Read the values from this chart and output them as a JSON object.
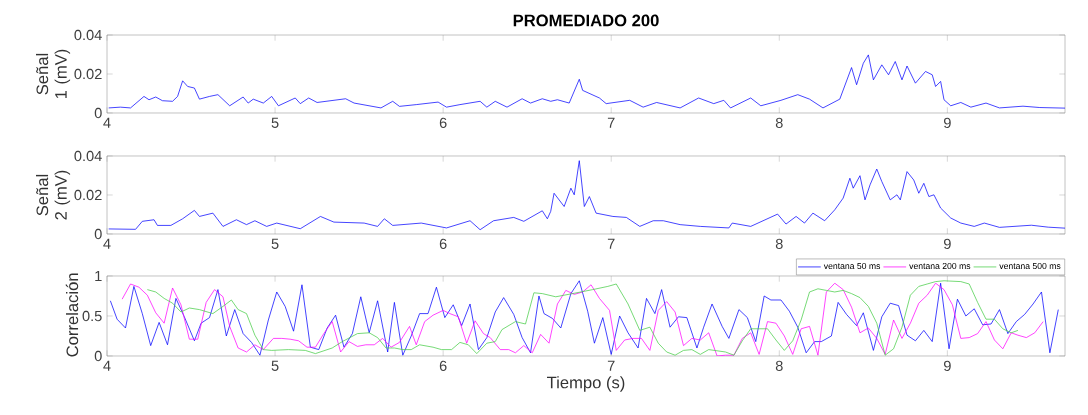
{
  "chart_data": [
    {
      "type": "line",
      "title": "PROMEDIADO 200",
      "ylabel": "Señal 1 (mV)",
      "xlim": [
        4,
        9.7
      ],
      "xticks": [
        4,
        5,
        6,
        7,
        8,
        9
      ],
      "ylim": [
        0,
        0.04
      ],
      "yticks": [
        0,
        0.02,
        0.04
      ],
      "series": [
        {
          "color": "#0000ff",
          "x": [
            4.01,
            4.08,
            4.14,
            4.22,
            4.25,
            4.29,
            4.33,
            4.39,
            4.42,
            4.45,
            4.48,
            4.52,
            4.55,
            4.61,
            4.66,
            4.73,
            4.81,
            4.84,
            4.87,
            4.93,
            4.98,
            5.02,
            5.12,
            5.15,
            5.2,
            5.25,
            5.42,
            5.47,
            5.63,
            5.7,
            5.74,
            5.84,
            5.97,
            6.02,
            6.1,
            6.22,
            6.26,
            6.31,
            6.38,
            6.47,
            6.52,
            6.59,
            6.64,
            6.68,
            6.75,
            6.81,
            6.83,
            6.93,
            6.97,
            7.11,
            7.19,
            7.27,
            7.41,
            7.52,
            7.61,
            7.67,
            7.71,
            7.83,
            7.89,
            8.01,
            8.11,
            8.18,
            8.26,
            8.36,
            8.43,
            8.46,
            8.5,
            8.53,
            8.56,
            8.61,
            8.65,
            8.69,
            8.73,
            8.76,
            8.81,
            8.87,
            8.91,
            8.93,
            8.96,
            8.98,
            9.02,
            9.08,
            9.14,
            9.23,
            9.31,
            9.45,
            9.55,
            9.7
          ],
          "values": [
            0.0026,
            0.003,
            0.0026,
            0.0085,
            0.0068,
            0.0082,
            0.0063,
            0.006,
            0.0085,
            0.0165,
            0.0136,
            0.0128,
            0.0071,
            0.0085,
            0.0094,
            0.0037,
            0.0082,
            0.0051,
            0.0071,
            0.0051,
            0.0085,
            0.0037,
            0.0077,
            0.0048,
            0.0077,
            0.0054,
            0.0073,
            0.0051,
            0.0026,
            0.006,
            0.0034,
            0.0043,
            0.0056,
            0.003,
            0.0043,
            0.006,
            0.003,
            0.006,
            0.003,
            0.0073,
            0.0051,
            0.0073,
            0.006,
            0.0068,
            0.0051,
            0.0173,
            0.0116,
            0.0077,
            0.0048,
            0.0065,
            0.003,
            0.0054,
            0.0026,
            0.0077,
            0.0048,
            0.0065,
            0.0026,
            0.0077,
            0.0037,
            0.0065,
            0.0094,
            0.0071,
            0.0026,
            0.0071,
            0.0233,
            0.0145,
            0.0255,
            0.0298,
            0.017,
            0.0247,
            0.0196,
            0.0264,
            0.017,
            0.0241,
            0.0153,
            0.0213,
            0.0196,
            0.0136,
            0.0162,
            0.0068,
            0.0037,
            0.0054,
            0.003,
            0.0051,
            0.0026,
            0.0035,
            0.0028,
            0.0025
          ]
        }
      ]
    },
    {
      "type": "line",
      "ylabel": "Señal 2 (mV)",
      "xlim": [
        4,
        9.7
      ],
      "xticks": [
        4,
        5,
        6,
        7,
        8,
        9
      ],
      "ylim": [
        0,
        0.04
      ],
      "yticks": [
        0,
        0.02,
        0.04
      ],
      "series": [
        {
          "color": "#0000ff",
          "x": [
            4.01,
            4.17,
            4.21,
            4.28,
            4.3,
            4.38,
            4.45,
            4.52,
            4.55,
            4.63,
            4.69,
            4.77,
            4.83,
            4.88,
            4.95,
            5.01,
            5.15,
            5.27,
            5.35,
            5.53,
            5.61,
            5.65,
            5.7,
            5.87,
            6.02,
            6.16,
            6.22,
            6.3,
            6.42,
            6.48,
            6.59,
            6.62,
            6.64,
            6.66,
            6.69,
            6.72,
            6.76,
            6.78,
            6.81,
            6.84,
            6.87,
            6.91,
            7.01,
            7.09,
            7.17,
            7.25,
            7.31,
            7.41,
            7.53,
            7.7,
            7.72,
            7.83,
            7.99,
            8.04,
            8.1,
            8.15,
            8.2,
            8.27,
            8.33,
            8.38,
            8.42,
            8.44,
            8.48,
            8.51,
            8.54,
            8.58,
            8.61,
            8.66,
            8.7,
            8.72,
            8.76,
            8.8,
            8.83,
            8.86,
            8.89,
            8.92,
            8.96,
            9.02,
            9.08,
            9.16,
            9.22,
            9.31,
            9.5,
            9.6,
            9.7
          ],
          "values": [
            0.0026,
            0.0024,
            0.0065,
            0.0073,
            0.0044,
            0.0044,
            0.0078,
            0.0121,
            0.009,
            0.0107,
            0.0039,
            0.0073,
            0.0048,
            0.0068,
            0.0039,
            0.0056,
            0.0027,
            0.009,
            0.0061,
            0.0056,
            0.0039,
            0.0078,
            0.0044,
            0.0056,
            0.0031,
            0.0068,
            0.0022,
            0.0068,
            0.0085,
            0.0065,
            0.0119,
            0.0078,
            0.0116,
            0.0209,
            0.0175,
            0.0141,
            0.0235,
            0.0201,
            0.0376,
            0.0141,
            0.0192,
            0.0107,
            0.009,
            0.0085,
            0.0039,
            0.0068,
            0.0068,
            0.0048,
            0.0039,
            0.0031,
            0.0056,
            0.0039,
            0.0102,
            0.0051,
            0.009,
            0.0056,
            0.0107,
            0.0068,
            0.0124,
            0.0184,
            0.0286,
            0.0235,
            0.0299,
            0.0175,
            0.0252,
            0.0333,
            0.0269,
            0.0175,
            0.0201,
            0.0175,
            0.032,
            0.0277,
            0.0209,
            0.026,
            0.0192,
            0.0201,
            0.0133,
            0.0082,
            0.0056,
            0.0039,
            0.0056,
            0.0034,
            0.0045,
            0.0035,
            0.003
          ]
        }
      ]
    },
    {
      "type": "line",
      "ylabel": "Correlación",
      "xlabel": "Tiempo (s)",
      "xlim": [
        4,
        9.7
      ],
      "xticks": [
        4,
        5,
        6,
        7,
        8,
        9
      ],
      "ylim": [
        0,
        1
      ],
      "yticks": [
        0,
        0.5,
        1
      ],
      "legend": "top right",
      "series": [
        {
          "name": "ventana 50 ms",
          "color": "#0000ff",
          "x": [
            4.02,
            4.06,
            4.11,
            4.16,
            4.21,
            4.26,
            4.31,
            4.36,
            4.41,
            4.46,
            4.52,
            4.56,
            4.61,
            4.66,
            4.71,
            4.76,
            4.81,
            4.86,
            4.91,
            4.96,
            5.01,
            5.06,
            5.11,
            5.16,
            5.21,
            5.26,
            5.31,
            5.36,
            5.41,
            5.46,
            5.51,
            5.56,
            5.61,
            5.67,
            5.71,
            5.76,
            5.81,
            5.86,
            5.91,
            5.96,
            6.01,
            6.06,
            6.11,
            6.16,
            6.21,
            6.26,
            6.31,
            6.36,
            6.42,
            6.47,
            6.52,
            6.57,
            6.6,
            6.65,
            6.7,
            6.76,
            6.81,
            6.86,
            6.9,
            6.95,
            7.0,
            7.05,
            7.1,
            7.16,
            7.21,
            7.26,
            7.3,
            7.35,
            7.4,
            7.45,
            7.51,
            7.55,
            7.6,
            7.66,
            7.7,
            7.76,
            7.81,
            7.86,
            7.91,
            7.95,
            8.01,
            8.06,
            8.11,
            8.16,
            8.21,
            8.25,
            8.31,
            8.35,
            8.4,
            8.46,
            8.5,
            8.56,
            8.61,
            8.66,
            8.71,
            8.76,
            8.81,
            8.86,
            8.91,
            8.96,
            9.01,
            9.06,
            9.11,
            9.16,
            9.21,
            9.26,
            9.31,
            9.36,
            9.41,
            9.46,
            9.51,
            9.56,
            9.61,
            9.66
          ],
          "values": [
            0.69,
            0.46,
            0.35,
            0.87,
            0.53,
            0.13,
            0.42,
            0.14,
            0.72,
            0.49,
            0.19,
            0.41,
            0.48,
            0.83,
            0.25,
            0.58,
            0.28,
            0.17,
            0.01,
            0.45,
            0.8,
            0.62,
            0.31,
            0.89,
            0.11,
            0.08,
            0.35,
            0.51,
            0.11,
            0.28,
            0.74,
            0.29,
            0.69,
            0.05,
            0.67,
            0.01,
            0.25,
            0.53,
            0.53,
            0.86,
            0.48,
            0.64,
            0.38,
            0.65,
            0.08,
            0.23,
            0.55,
            0.73,
            0.52,
            0.23,
            0.04,
            0.75,
            0.53,
            0.47,
            0.35,
            0.78,
            0.94,
            0.56,
            0.16,
            0.48,
            0.02,
            0.5,
            0.29,
            0.1,
            0.72,
            0.53,
            0.83,
            0.36,
            0.49,
            0.48,
            0.1,
            0.36,
            0.65,
            0.37,
            0.22,
            0.58,
            0.48,
            0.18,
            0.75,
            0.7,
            0.7,
            0.56,
            0.36,
            0.04,
            0.18,
            0.18,
            0.25,
            0.67,
            0.52,
            0.38,
            0.54,
            0.07,
            0.49,
            0.66,
            0.63,
            0.26,
            0.19,
            0.32,
            0.18,
            0.91,
            0.09,
            0.71,
            0.5,
            0.59,
            0.39,
            0.4,
            0.58,
            0.28,
            0.43,
            0.52,
            0.65,
            0.8,
            0.04,
            0.58
          ]
        },
        {
          "name": "ventana 200 ms",
          "color": "#ff00ff",
          "x": [
            4.09,
            4.14,
            4.19,
            4.24,
            4.29,
            4.34,
            4.39,
            4.44,
            4.49,
            4.54,
            4.59,
            4.64,
            4.69,
            4.73,
            4.78,
            4.83,
            4.88,
            4.93,
            4.99,
            5.04,
            5.09,
            5.14,
            5.19,
            5.24,
            5.29,
            5.34,
            5.39,
            5.44,
            5.49,
            5.54,
            5.59,
            5.64,
            5.69,
            5.74,
            5.8,
            5.84,
            5.89,
            5.94,
            6.0,
            6.04,
            6.09,
            6.14,
            6.19,
            6.24,
            6.28,
            6.34,
            6.39,
            6.43,
            6.48,
            6.53,
            6.58,
            6.63,
            6.68,
            6.73,
            6.78,
            6.83,
            6.88,
            6.93,
            6.99,
            7.03,
            7.08,
            7.13,
            7.18,
            7.23,
            7.28,
            7.33,
            7.38,
            7.43,
            7.48,
            7.53,
            7.58,
            7.63,
            7.68,
            7.73,
            7.78,
            7.83,
            7.88,
            7.93,
            7.98,
            8.03,
            8.08,
            8.13,
            8.18,
            8.23,
            8.28,
            8.33,
            8.38,
            8.43,
            8.48,
            8.53,
            8.58,
            8.63,
            8.68,
            8.73,
            8.78,
            8.83,
            8.88,
            8.93,
            8.98,
            9.03,
            9.08,
            9.13,
            9.18,
            9.23,
            9.28,
            9.33,
            9.38,
            9.42,
            9.47,
            9.52,
            9.57
          ],
          "values": [
            0.71,
            0.9,
            0.86,
            0.76,
            0.54,
            0.41,
            0.85,
            0.64,
            0.21,
            0.21,
            0.67,
            0.83,
            0.74,
            0.37,
            0.1,
            0.05,
            0.14,
            0.08,
            0.22,
            0.22,
            0.21,
            0.19,
            0.11,
            0.11,
            0.28,
            0.43,
            0.05,
            0.18,
            0.12,
            0.14,
            0.14,
            0.22,
            0.11,
            0.17,
            0.37,
            0.14,
            0.43,
            0.51,
            0.57,
            0.53,
            0.49,
            0.16,
            0.44,
            0.28,
            0.23,
            0.08,
            0.08,
            0.04,
            0.13,
            0.04,
            0.27,
            0.16,
            0.65,
            0.82,
            0.77,
            0.8,
            0.89,
            0.72,
            0.57,
            0.07,
            0.2,
            0.22,
            0.22,
            0.07,
            0.57,
            0.68,
            0.55,
            0.13,
            0.22,
            0.2,
            0.29,
            0.0,
            0.01,
            0.01,
            0.22,
            0.29,
            0.02,
            0.43,
            0.41,
            0.25,
            0.02,
            0.34,
            0.37,
            0.01,
            0.8,
            0.91,
            0.83,
            0.61,
            0.29,
            0.35,
            0.22,
            0.02,
            0.45,
            0.22,
            0.41,
            0.66,
            0.76,
            0.91,
            0.83,
            0.64,
            0.22,
            0.23,
            0.28,
            0.43,
            0.2,
            0.09,
            0.29,
            0.26,
            0.23,
            0.29,
            0.43
          ]
        },
        {
          "name": "ventana 500 ms",
          "color": "#44cc44",
          "x": [
            4.24,
            4.29,
            4.34,
            4.39,
            4.44,
            4.49,
            4.55,
            4.63,
            4.69,
            4.74,
            4.78,
            4.83,
            4.88,
            4.93,
            4.98,
            5.08,
            5.18,
            5.24,
            5.34,
            5.4,
            5.49,
            5.56,
            5.61,
            5.66,
            5.71,
            5.76,
            5.81,
            5.86,
            5.94,
            5.99,
            6.05,
            6.1,
            6.15,
            6.2,
            6.26,
            6.31,
            6.35,
            6.43,
            6.49,
            6.54,
            6.59,
            6.67,
            6.77,
            6.89,
            6.98,
            7.03,
            7.1,
            7.17,
            7.23,
            7.28,
            7.33,
            7.38,
            7.43,
            7.48,
            7.53,
            7.58,
            7.68,
            7.73,
            7.78,
            7.83,
            7.93,
            7.98,
            8.03,
            8.08,
            8.13,
            8.18,
            8.23,
            8.28,
            8.33,
            8.38,
            8.43,
            8.48,
            8.53,
            8.58,
            8.63,
            8.68,
            8.73,
            8.78,
            8.83,
            8.88,
            8.93,
            8.98,
            9.08,
            9.13,
            9.18,
            9.23,
            9.28,
            9.33,
            9.38,
            9.42
          ],
          "values": [
            0.83,
            0.8,
            0.72,
            0.66,
            0.55,
            0.6,
            0.58,
            0.53,
            0.62,
            0.7,
            0.58,
            0.53,
            0.26,
            0.08,
            0.07,
            0.08,
            0.07,
            0.03,
            0.1,
            0.18,
            0.28,
            0.29,
            0.23,
            0.1,
            0.1,
            0.08,
            0.08,
            0.14,
            0.11,
            0.08,
            0.08,
            0.17,
            0.14,
            0.03,
            0.16,
            0.18,
            0.33,
            0.43,
            0.4,
            0.79,
            0.78,
            0.74,
            0.78,
            0.83,
            0.87,
            0.9,
            0.65,
            0.32,
            0.36,
            0.16,
            0.05,
            0.01,
            0.07,
            0.08,
            0.02,
            0.08,
            0.05,
            0.01,
            0.19,
            0.34,
            0.34,
            0.2,
            0.07,
            0.19,
            0.45,
            0.8,
            0.84,
            0.82,
            0.8,
            0.82,
            0.78,
            0.73,
            0.62,
            0.41,
            0.01,
            0.09,
            0.36,
            0.76,
            0.87,
            0.9,
            0.93,
            0.94,
            0.93,
            0.9,
            0.67,
            0.46,
            0.46,
            0.34,
            0.29,
            0.32
          ]
        }
      ]
    }
  ]
}
